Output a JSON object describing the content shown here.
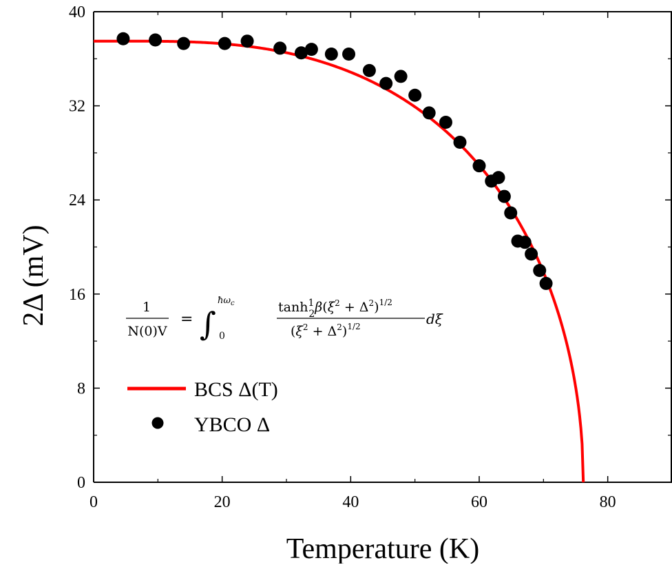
{
  "chart_data": {
    "type": "scatter",
    "title": "",
    "xlabel": "Temperature (K)",
    "ylabel": "2Δ (mV)",
    "xlim": [
      0,
      90
    ],
    "ylim": [
      0,
      40
    ],
    "x_ticks": [
      0,
      20,
      40,
      60,
      80
    ],
    "y_ticks": [
      0,
      8,
      16,
      24,
      32,
      40
    ],
    "grid": false,
    "legend_position": "left",
    "annotation": "1/N(0)V = ∫₀^{ħω_c} tanh½β(ξ² + Δ²)^{1/2} / (ξ² + Δ²)^{1/2} dξ",
    "series": [
      {
        "name": "BCS Δ(T)",
        "kind": "line",
        "color": "#ff0000",
        "Tc": 76.2,
        "delta0": 37.5
      },
      {
        "name": "YBCO Δ",
        "kind": "scatter",
        "color": "#000000",
        "points": [
          [
            4.6,
            37.7
          ],
          [
            9.6,
            37.6
          ],
          [
            14.0,
            37.3
          ],
          [
            20.4,
            37.3
          ],
          [
            23.9,
            37.5
          ],
          [
            29.0,
            36.9
          ],
          [
            32.3,
            36.5
          ],
          [
            33.9,
            36.8
          ],
          [
            37.0,
            36.4
          ],
          [
            39.7,
            36.4
          ],
          [
            42.9,
            35.0
          ],
          [
            45.5,
            33.9
          ],
          [
            47.8,
            34.5
          ],
          [
            50.0,
            32.9
          ],
          [
            52.2,
            31.4
          ],
          [
            54.8,
            30.6
          ],
          [
            57.0,
            28.9
          ],
          [
            60.0,
            26.9
          ],
          [
            61.9,
            25.6
          ],
          [
            63.0,
            25.9
          ],
          [
            63.9,
            24.3
          ],
          [
            64.9,
            22.9
          ],
          [
            66.0,
            20.5
          ],
          [
            67.1,
            20.4
          ],
          [
            68.1,
            19.4
          ],
          [
            69.4,
            18.0
          ],
          [
            70.4,
            16.9
          ]
        ]
      }
    ]
  },
  "legend": {
    "line_label": "BCS Δ(T)",
    "dot_label": "YBCO Δ"
  }
}
